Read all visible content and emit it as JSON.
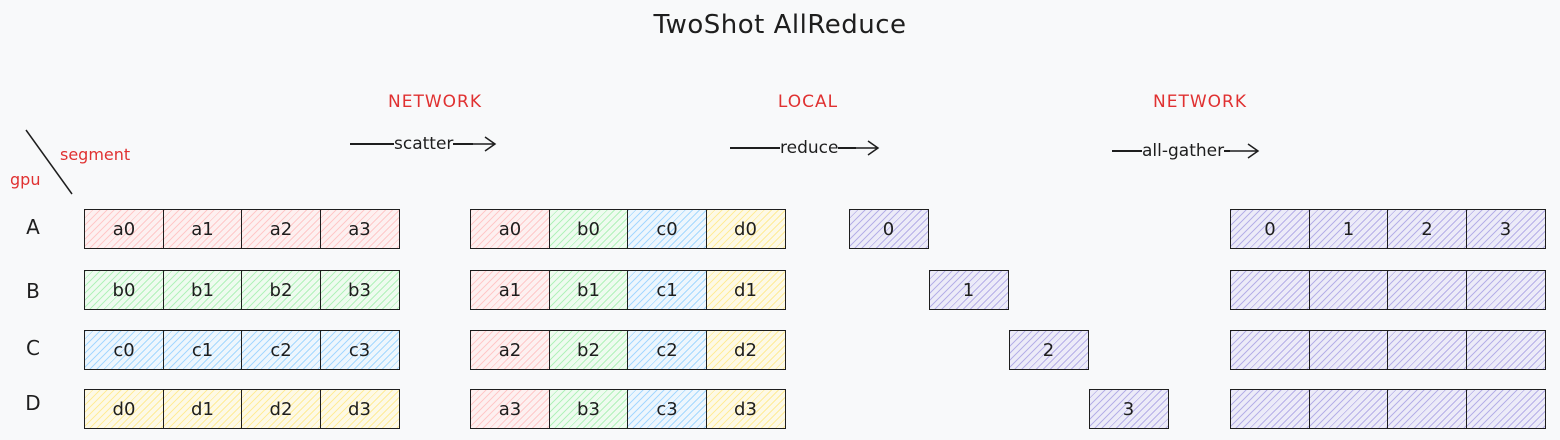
{
  "title": "TwoShot AllReduce",
  "header": {
    "segment_label": "segment",
    "gpu_label": "gpu"
  },
  "phases": [
    {
      "label": "NETWORK",
      "op": "scatter"
    },
    {
      "label": "LOCAL",
      "op": "reduce"
    },
    {
      "label": "NETWORK",
      "op": "all-gather"
    }
  ],
  "rows": [
    "A",
    "B",
    "C",
    "D"
  ],
  "input": [
    [
      "a0",
      "a1",
      "a2",
      "a3"
    ],
    [
      "b0",
      "b1",
      "b2",
      "b3"
    ],
    [
      "c0",
      "c1",
      "c2",
      "c3"
    ],
    [
      "d0",
      "d1",
      "d2",
      "d3"
    ]
  ],
  "after_scatter": [
    [
      "a0",
      "b0",
      "c0",
      "d0"
    ],
    [
      "a1",
      "b1",
      "c1",
      "d1"
    ],
    [
      "a2",
      "b2",
      "c2",
      "d2"
    ],
    [
      "a3",
      "b3",
      "c3",
      "d3"
    ]
  ],
  "reduced": [
    "0",
    "1",
    "2",
    "3"
  ],
  "gathered": [
    [
      "0",
      "1",
      "2",
      "3"
    ],
    [
      "",
      "",
      "",
      ""
    ],
    [
      "",
      "",
      "",
      ""
    ],
    [
      "",
      "",
      "",
      ""
    ]
  ],
  "colors": {
    "pink": "#ffc9c9",
    "green": "#b2f2bb",
    "blue": "#a5d8ff",
    "yellow": "#ffec99",
    "purple": "#b6b0e8",
    "accent_red": "#e03131"
  }
}
